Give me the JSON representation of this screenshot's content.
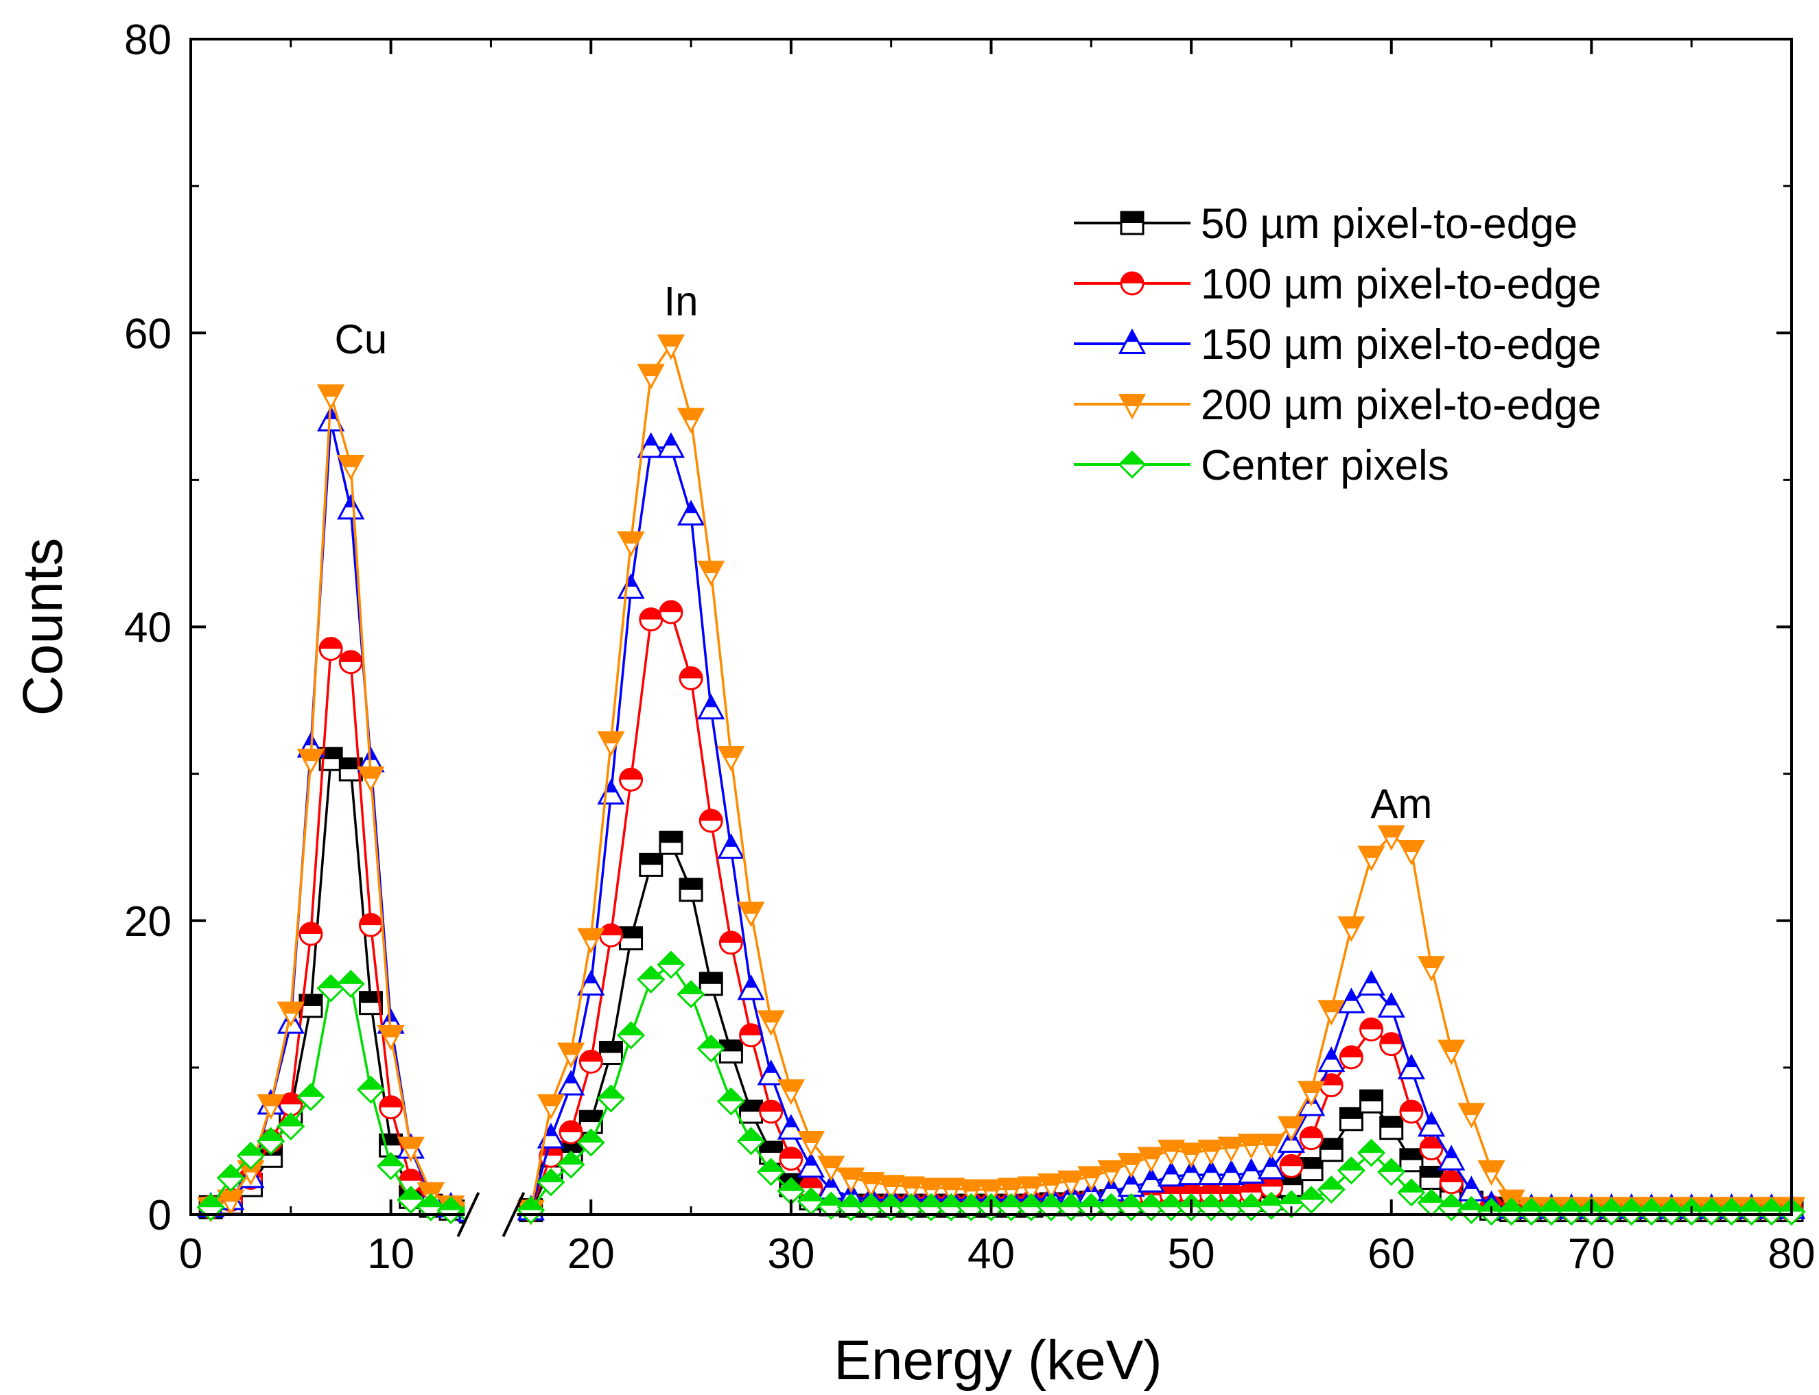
{
  "chart_data": {
    "type": "line",
    "xlabel": "Energy (keV)",
    "ylabel": "Counts",
    "xlim": [
      0,
      80
    ],
    "ylim": [
      0,
      80
    ],
    "xticks": [
      0,
      10,
      20,
      30,
      40,
      50,
      60,
      70,
      80
    ],
    "yticks": [
      0,
      20,
      40,
      60,
      80
    ],
    "axis_break": 15,
    "grid": false,
    "legend_position": "top-right",
    "annotations": [
      {
        "text": "Cu",
        "x": 8.5,
        "y": 58.6
      },
      {
        "text": "In",
        "x": 24.5,
        "y": 61.2
      },
      {
        "text": "Am",
        "x": 60.5,
        "y": 27.0
      }
    ],
    "series": [
      {
        "name": "50 µm pixel-to-edge",
        "color": "#000000",
        "marker": "square",
        "x": [
          1,
          2,
          3,
          4,
          5,
          6,
          7,
          8,
          9,
          10,
          11,
          12,
          13,
          14,
          17,
          18,
          19,
          20,
          21,
          22,
          23,
          24,
          25,
          26,
          27,
          28,
          29,
          30,
          31,
          32,
          33,
          34,
          35,
          36,
          37,
          38,
          39,
          40,
          41,
          42,
          43,
          44,
          45,
          46,
          47,
          48,
          49,
          50,
          51,
          52,
          53,
          54,
          55,
          56,
          57,
          58,
          59,
          60,
          61,
          62,
          63,
          64,
          65,
          66,
          67,
          68,
          69,
          70,
          71,
          72,
          73,
          74,
          75,
          76,
          77,
          78,
          79,
          80
        ],
        "values": [
          0.5,
          0.8,
          2.0,
          4.0,
          7.0,
          14.2,
          31.0,
          30.3,
          14.4,
          4.7,
          1.2,
          0.6,
          0.4,
          0.2,
          0.3,
          3.2,
          4.2,
          6.3,
          11.0,
          18.8,
          23.8,
          25.3,
          22.1,
          15.7,
          11.1,
          7.0,
          4.2,
          2.0,
          1.1,
          0.7,
          0.6,
          0.6,
          0.6,
          0.6,
          0.6,
          0.6,
          0.6,
          0.6,
          0.6,
          0.6,
          0.7,
          0.7,
          0.8,
          0.9,
          0.9,
          1.0,
          1.0,
          1.0,
          1.0,
          1.0,
          1.0,
          1.1,
          2.0,
          3.1,
          4.4,
          6.5,
          7.7,
          5.9,
          3.7,
          2.5,
          1.5,
          0.8,
          0.4,
          0.3,
          0.3,
          0.3,
          0.3,
          0.3,
          0.3,
          0.3,
          0.3,
          0.3,
          0.3,
          0.3,
          0.3,
          0.3,
          0.3,
          0.3
        ]
      },
      {
        "name": "100 µm pixel-to-edge",
        "color": "#ff0000",
        "marker": "circle",
        "x": [
          1,
          2,
          3,
          4,
          5,
          6,
          7,
          8,
          9,
          10,
          11,
          12,
          13,
          14,
          17,
          18,
          19,
          20,
          21,
          22,
          23,
          24,
          25,
          26,
          27,
          28,
          29,
          30,
          31,
          32,
          33,
          34,
          35,
          36,
          37,
          38,
          39,
          40,
          41,
          42,
          43,
          44,
          45,
          46,
          47,
          48,
          49,
          50,
          51,
          52,
          53,
          54,
          55,
          56,
          57,
          58,
          59,
          60,
          61,
          62,
          63,
          64,
          65,
          66,
          67,
          68,
          69,
          70,
          71,
          72,
          73,
          74,
          75,
          76,
          77,
          78,
          79,
          80
        ],
        "values": [
          0.5,
          1.0,
          2.5,
          5.0,
          7.5,
          19.1,
          38.5,
          37.6,
          19.7,
          7.3,
          2.3,
          0.8,
          0.5,
          0.2,
          0.3,
          4.0,
          5.6,
          10.4,
          19.0,
          29.6,
          40.5,
          41.0,
          36.5,
          26.8,
          18.5,
          12.2,
          7.0,
          3.8,
          1.8,
          1.0,
          0.7,
          0.7,
          0.7,
          0.7,
          0.7,
          0.7,
          0.7,
          0.7,
          0.7,
          0.8,
          0.8,
          0.9,
          1.0,
          1.1,
          1.2,
          1.3,
          1.4,
          1.4,
          1.4,
          1.4,
          1.5,
          1.9,
          3.3,
          5.2,
          8.8,
          10.7,
          12.6,
          11.6,
          7.0,
          4.5,
          2.2,
          1.0,
          0.5,
          0.3,
          0.3,
          0.3,
          0.3,
          0.3,
          0.3,
          0.3,
          0.3,
          0.3,
          0.3,
          0.3,
          0.3,
          0.3,
          0.3,
          0.3
        ]
      },
      {
        "name": "150 µm pixel-to-edge",
        "color": "#0000ff",
        "marker": "triangle-up",
        "x": [
          1,
          2,
          3,
          4,
          5,
          6,
          7,
          8,
          9,
          10,
          11,
          12,
          13,
          14,
          17,
          18,
          19,
          20,
          21,
          22,
          23,
          24,
          25,
          26,
          27,
          28,
          29,
          30,
          31,
          32,
          33,
          34,
          35,
          36,
          37,
          38,
          39,
          40,
          41,
          42,
          43,
          44,
          45,
          46,
          47,
          48,
          49,
          50,
          51,
          52,
          53,
          54,
          55,
          56,
          57,
          58,
          59,
          60,
          61,
          62,
          63,
          64,
          65,
          66,
          67,
          68,
          69,
          70,
          71,
          72,
          73,
          74,
          75,
          76,
          77,
          78,
          79,
          80
        ],
        "values": [
          0.5,
          1.0,
          2.5,
          7.5,
          13.0,
          31.8,
          54.0,
          48.0,
          30.8,
          13.0,
          4.5,
          1.2,
          0.5,
          0.2,
          0.3,
          5.2,
          8.8,
          15.6,
          28.6,
          42.6,
          52.2,
          52.2,
          47.6,
          34.4,
          24.9,
          15.3,
          9.5,
          5.8,
          3.2,
          1.7,
          1.2,
          1.0,
          1.0,
          1.0,
          1.0,
          1.0,
          1.0,
          1.0,
          1.0,
          1.0,
          1.1,
          1.2,
          1.4,
          1.6,
          1.9,
          2.2,
          2.6,
          2.7,
          2.7,
          2.7,
          2.8,
          3.1,
          4.9,
          7.4,
          10.4,
          14.4,
          15.6,
          14.1,
          9.9,
          6.0,
          3.7,
          1.6,
          0.6,
          0.4,
          0.4,
          0.4,
          0.4,
          0.4,
          0.4,
          0.4,
          0.4,
          0.4,
          0.4,
          0.4,
          0.4,
          0.4,
          0.4,
          0.4
        ]
      },
      {
        "name": "200 µm pixel-to-edge",
        "color": "#ff8c00",
        "marker": "triangle-down",
        "x": [
          1,
          2,
          3,
          4,
          5,
          6,
          7,
          8,
          9,
          10,
          11,
          12,
          13,
          14,
          17,
          18,
          19,
          20,
          21,
          22,
          23,
          24,
          25,
          26,
          27,
          28,
          29,
          30,
          31,
          32,
          33,
          34,
          35,
          36,
          37,
          38,
          39,
          40,
          41,
          42,
          43,
          44,
          45,
          46,
          47,
          48,
          49,
          50,
          51,
          52,
          53,
          54,
          55,
          56,
          57,
          58,
          59,
          60,
          61,
          62,
          63,
          64,
          65,
          66,
          67,
          68,
          69,
          70,
          71,
          72,
          73,
          74,
          75,
          76,
          77,
          78,
          79,
          80
        ],
        "values": [
          0.5,
          1.0,
          3.0,
          7.5,
          13.8,
          31.0,
          55.8,
          51.0,
          29.8,
          12.2,
          4.6,
          1.5,
          0.6,
          0.2,
          0.3,
          7.5,
          11.0,
          18.8,
          32.2,
          45.8,
          57.2,
          59.2,
          54.2,
          43.8,
          31.2,
          20.6,
          13.2,
          8.5,
          5.0,
          3.3,
          2.5,
          2.2,
          2.0,
          1.9,
          1.8,
          1.8,
          1.7,
          1.7,
          1.8,
          1.9,
          2.1,
          2.3,
          2.6,
          3.0,
          3.5,
          3.9,
          4.4,
          4.2,
          4.4,
          4.6,
          4.8,
          4.8,
          6.0,
          8.4,
          13.9,
          19.6,
          24.4,
          25.8,
          24.8,
          16.9,
          11.2,
          6.9,
          3.0,
          1.0,
          0.5,
          0.5,
          0.5,
          0.5,
          0.5,
          0.5,
          0.5,
          0.5,
          0.5,
          0.5,
          0.5,
          0.5,
          0.5,
          0.5
        ]
      },
      {
        "name": "Center pixels",
        "color": "#00dd00",
        "marker": "diamond",
        "x": [
          1,
          2,
          3,
          4,
          5,
          6,
          7,
          8,
          9,
          10,
          11,
          12,
          13,
          14,
          17,
          18,
          19,
          20,
          21,
          22,
          23,
          24,
          25,
          26,
          27,
          28,
          29,
          30,
          31,
          32,
          33,
          34,
          35,
          36,
          37,
          38,
          39,
          40,
          41,
          42,
          43,
          44,
          45,
          46,
          47,
          48,
          49,
          50,
          51,
          52,
          53,
          54,
          55,
          56,
          57,
          58,
          59,
          60,
          61,
          62,
          63,
          64,
          65,
          66,
          67,
          68,
          69,
          70,
          71,
          72,
          73,
          74,
          75,
          76,
          77,
          78,
          79,
          80
        ],
        "values": [
          0.5,
          2.5,
          4.0,
          5.0,
          6.0,
          8.0,
          15.4,
          15.7,
          8.5,
          3.3,
          1.0,
          0.5,
          0.3,
          0.1,
          0.3,
          2.2,
          3.4,
          4.9,
          7.9,
          12.2,
          16.0,
          17.0,
          15.0,
          11.3,
          7.7,
          5.0,
          2.9,
          1.6,
          0.9,
          0.6,
          0.5,
          0.5,
          0.5,
          0.5,
          0.5,
          0.5,
          0.5,
          0.5,
          0.5,
          0.5,
          0.5,
          0.5,
          0.5,
          0.5,
          0.5,
          0.5,
          0.5,
          0.5,
          0.5,
          0.5,
          0.5,
          0.6,
          0.7,
          1.0,
          1.7,
          3.0,
          4.2,
          2.9,
          1.5,
          0.8,
          0.5,
          0.3,
          0.2,
          0.2,
          0.2,
          0.2,
          0.2,
          0.2,
          0.2,
          0.2,
          0.2,
          0.2,
          0.2,
          0.2,
          0.2,
          0.2,
          0.2,
          0.2
        ]
      }
    ]
  }
}
